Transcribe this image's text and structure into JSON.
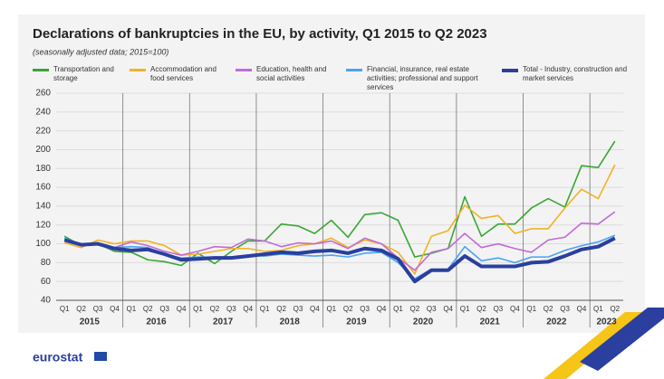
{
  "chart_data": {
    "type": "line",
    "title": "Declarations of bankruptcies in the EU, by activity, Q1 2015 to Q2 2023",
    "subtitle": "(seasonally adjusted data; 2015=100)",
    "categories": [
      "Q1",
      "Q2",
      "Q3",
      "Q4",
      "Q1",
      "Q2",
      "Q3",
      "Q4",
      "Q1",
      "Q2",
      "Q3",
      "Q4",
      "Q1",
      "Q2",
      "Q3",
      "Q4",
      "Q1",
      "Q2",
      "Q3",
      "Q4",
      "Q1",
      "Q2",
      "Q3",
      "Q4",
      "Q1",
      "Q2",
      "Q3",
      "Q4",
      "Q1",
      "Q2",
      "Q3",
      "Q4",
      "Q1",
      "Q2"
    ],
    "years": [
      "2015",
      "2016",
      "2017",
      "2018",
      "2019",
      "2020",
      "2021",
      "2022",
      "2023"
    ],
    "ylim": [
      40,
      260
    ],
    "yticks": [
      40,
      60,
      80,
      100,
      120,
      140,
      160,
      180,
      200,
      220,
      240,
      260
    ],
    "grid": true,
    "series": [
      {
        "name": "Transportation and storage",
        "color": "#3aa635",
        "values": [
          108,
          98,
          100,
          92,
          91,
          83,
          81,
          77,
          90,
          79,
          92,
          103,
          103,
          121,
          119,
          111,
          125,
          107,
          131,
          133,
          125,
          86,
          90,
          95,
          150,
          108,
          121,
          121,
          138,
          148,
          139,
          183,
          181,
          209
        ]
      },
      {
        "name": "Accommodation and food services",
        "color": "#f0b323",
        "values": [
          101,
          96,
          104,
          100,
          103,
          103,
          98,
          88,
          89,
          92,
          95,
          95,
          92,
          93,
          98,
          100,
          106,
          96,
          104,
          100,
          91,
          68,
          108,
          114,
          141,
          127,
          130,
          111,
          116,
          116,
          138,
          158,
          148,
          184
        ]
      },
      {
        "name": "Education, health and social activities",
        "color": "#c36ad6",
        "values": [
          105,
          98,
          101,
          96,
          102,
          98,
          92,
          88,
          92,
          97,
          96,
          105,
          103,
          97,
          101,
          100,
          103,
          95,
          106,
          100,
          85,
          72,
          91,
          95,
          111,
          96,
          100,
          95,
          91,
          104,
          107,
          122,
          121,
          134
        ]
      },
      {
        "name": "Financial, insurance, real estate activities; professional and support services",
        "color": "#4aa4f2",
        "values": [
          106,
          99,
          101,
          96,
          97,
          96,
          89,
          85,
          86,
          86,
          86,
          88,
          87,
          89,
          88,
          87,
          88,
          86,
          90,
          91,
          80,
          63,
          73,
          73,
          97,
          82,
          85,
          80,
          86,
          86,
          93,
          98,
          102,
          109
        ]
      },
      {
        "name": "Total - Industry, construction and market services",
        "color": "#2a3f9e",
        "values": [
          104,
          99,
          100,
          95,
          93,
          94,
          89,
          83,
          84,
          85,
          85,
          87,
          89,
          91,
          90,
          92,
          93,
          90,
          95,
          93,
          84,
          60,
          72,
          72,
          87,
          76,
          76,
          76,
          80,
          81,
          87,
          94,
          97,
          106
        ]
      }
    ]
  },
  "footer": {
    "logo": "eurostat"
  }
}
